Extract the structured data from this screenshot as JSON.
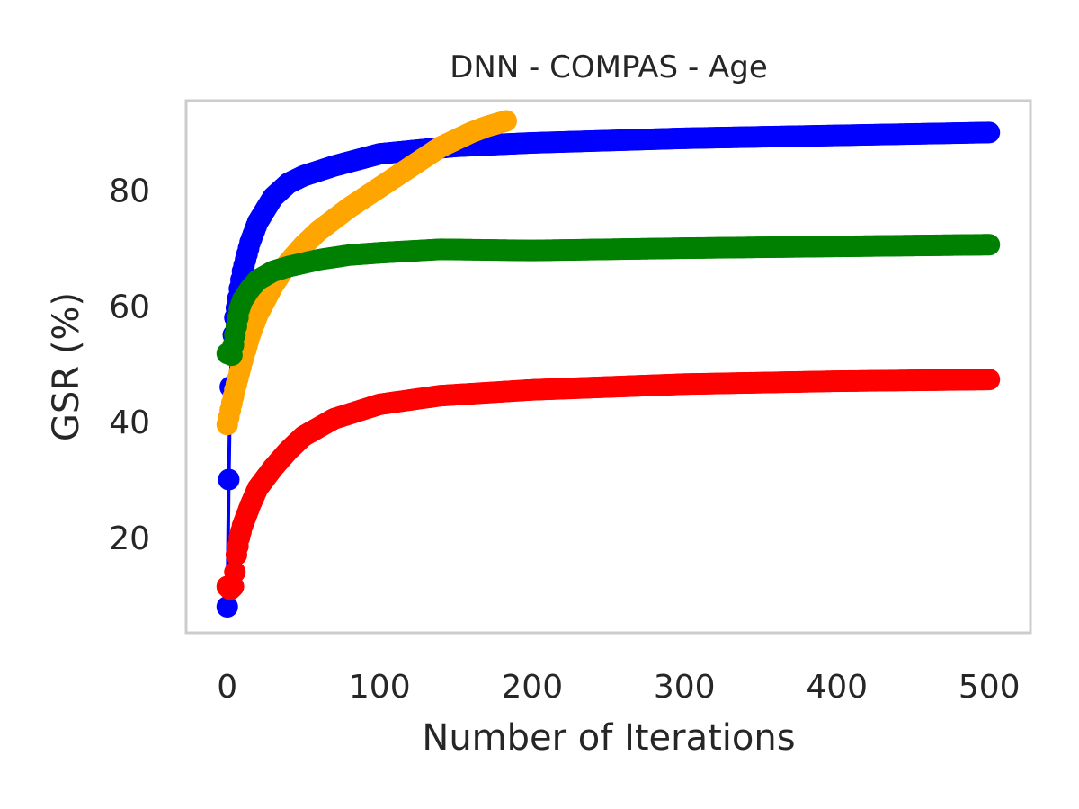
{
  "chart_data": {
    "type": "line",
    "title": "DNN - COMPAS - Age",
    "xlabel": "Number of Iterations",
    "ylabel": "GSR (%)",
    "xlim": [
      -27,
      527
    ],
    "ylim": [
      3.5,
      95.5
    ],
    "x_ticks": [
      0,
      100,
      200,
      300,
      400,
      500
    ],
    "y_ticks": [
      20,
      40,
      60,
      80
    ],
    "grid": false,
    "legend": "none",
    "series": [
      {
        "color": "#0000ff",
        "x": [
          0,
          1,
          2,
          3,
          5,
          8,
          10,
          15,
          20,
          30,
          40,
          50,
          70,
          100,
          150,
          200,
          300,
          400,
          500
        ],
        "values": [
          8.0,
          30.0,
          46.0,
          52.0,
          58.0,
          63.0,
          66.0,
          71.0,
          74.5,
          78.8,
          81.2,
          82.5,
          84.2,
          86.3,
          87.6,
          88.2,
          89.0,
          89.5,
          90.0
        ]
      },
      {
        "color": "#ffa500",
        "x": [
          0,
          2,
          5,
          8,
          10,
          15,
          20,
          30,
          40,
          50,
          60,
          80,
          100,
          120,
          140,
          160,
          170,
          183
        ],
        "values": [
          39.5,
          42.0,
          45.5,
          48.5,
          50.5,
          55.0,
          58.5,
          63.5,
          67.5,
          70.5,
          73.0,
          77.0,
          80.5,
          84.0,
          87.5,
          90.0,
          91.0,
          92.0
        ]
      },
      {
        "color": "#008000",
        "x": [
          0,
          3,
          5,
          8,
          10,
          15,
          20,
          30,
          40,
          60,
          80,
          100,
          140,
          200,
          300,
          400,
          500
        ],
        "values": [
          51.8,
          51.5,
          55.0,
          59.5,
          61.0,
          63.0,
          64.5,
          66.0,
          66.8,
          68.0,
          68.8,
          69.2,
          69.8,
          69.6,
          70.0,
          70.3,
          70.6
        ]
      },
      {
        "color": "#ff0000",
        "x": [
          0,
          2,
          4,
          5,
          6,
          8,
          10,
          15,
          20,
          30,
          40,
          50,
          70,
          100,
          140,
          200,
          300,
          400,
          500
        ],
        "values": [
          11.5,
          11.0,
          11.5,
          14.0,
          17.0,
          20.0,
          22.0,
          25.5,
          28.5,
          32.0,
          35.0,
          37.5,
          40.5,
          43.0,
          44.5,
          45.5,
          46.5,
          47.0,
          47.3
        ]
      }
    ]
  }
}
